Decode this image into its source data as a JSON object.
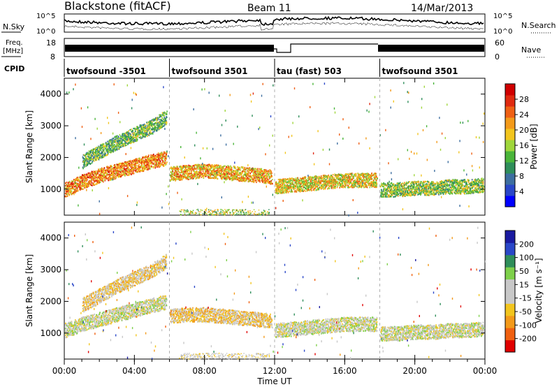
{
  "header": {
    "station": "Blackstone (fitACF)",
    "beam": "Beam 11",
    "date": "14/Mar/2013"
  },
  "noise_panel": {
    "left_label": "N.Sky",
    "right_label": "N.Search",
    "left_ticks": [
      "10^5",
      "10^0"
    ],
    "right_ticks": [
      "10^5",
      "10^0"
    ]
  },
  "freq_panel": {
    "left_label_top": "Freq.",
    "left_label_bottom": "[MHz]",
    "right_label": "Nave",
    "left_ticks": [
      "18",
      "8"
    ],
    "right_ticks": [
      "60",
      "0"
    ]
  },
  "cpid_panel": {
    "label": "CPID",
    "segments": [
      {
        "name": "twofsound -3501",
        "start_h": 0,
        "end_h": 6
      },
      {
        "name": "twofsound 3501",
        "start_h": 6,
        "end_h": 12
      },
      {
        "name": "tau (fast) 503",
        "start_h": 12,
        "end_h": 18
      },
      {
        "name": "twofsound 3501",
        "start_h": 18,
        "end_h": 24
      }
    ]
  },
  "time_axis": {
    "label": "Time UT",
    "ticks": [
      "00:00",
      "04:00",
      "08:00",
      "12:00",
      "16:00",
      "20:00",
      "00:00"
    ],
    "range_h": [
      0,
      24
    ]
  },
  "power_panel": {
    "ylabel": "Slant Range [km]",
    "yticks": [
      "4000",
      "3000",
      "2000",
      "1000"
    ],
    "colorbar_label": "Power [dB]",
    "colorbar_ticks": [
      "28",
      "24",
      "20",
      "16",
      "12",
      "8",
      "4"
    ]
  },
  "velocity_panel": {
    "ylabel": "Slant Range [km]",
    "yticks": [
      "4000",
      "3000",
      "2000",
      "1000"
    ],
    "colorbar_label": "Velocity [m s⁻¹]",
    "colorbar_ticks": [
      "200",
      "100",
      "50",
      "15",
      "-15",
      "-50",
      "-100",
      "-200"
    ]
  },
  "colors": {
    "power_scale": [
      "#0000ff",
      "#2a47c8",
      "#3d6ea0",
      "#2f8e5a",
      "#4ab53a",
      "#9fd63b",
      "#f2c51e",
      "#f39a1a",
      "#ef6014",
      "#e02a10",
      "#d00000"
    ],
    "velocity_scale": [
      "#e00000",
      "#f06010",
      "#f39a1a",
      "#f2c51e",
      "#c8c8c8",
      "#c8c8c8",
      "#7ed04a",
      "#2f8e5a",
      "#2a47c8",
      "#1a1aa0"
    ]
  },
  "chart_data": [
    {
      "type": "heatmap",
      "title": "Power",
      "xlabel": "Time UT",
      "ylabel": "Slant Range [km]",
      "xlim_h": [
        0,
        24
      ],
      "ylim_km": [
        180,
        4500
      ],
      "zlim_db": [
        0,
        30
      ],
      "legend": "Power [dB]",
      "scatter_bands": [
        {
          "t": [
            0,
            1,
            2,
            3,
            4,
            5,
            5.8
          ],
          "range_km": [
            1000,
            1250,
            1450,
            1600,
            1750,
            1900,
            2000
          ],
          "power_db": 22
        },
        {
          "t": [
            1,
            2,
            3,
            4,
            5,
            5.8
          ],
          "range_km": [
            1900,
            2200,
            2500,
            2750,
            3000,
            3300
          ],
          "power_db": 12
        },
        {
          "t": [
            6,
            7,
            8,
            9,
            10,
            11,
            11.8
          ],
          "range_km": [
            1500,
            1550,
            1600,
            1550,
            1500,
            1450,
            1400
          ],
          "power_db": 20
        },
        {
          "t": [
            12,
            13,
            14,
            15,
            16,
            17,
            17.8
          ],
          "range_km": [
            1100,
            1150,
            1200,
            1250,
            1300,
            1300,
            1300
          ],
          "power_db": 18
        },
        {
          "t": [
            18,
            19,
            20,
            21,
            22,
            23,
            23.9
          ],
          "range_km": [
            1000,
            1000,
            1050,
            1050,
            1100,
            1100,
            1150
          ],
          "power_db": 14
        }
      ]
    },
    {
      "type": "heatmap",
      "title": "Velocity",
      "xlabel": "Time UT",
      "ylabel": "Slant Range [km]",
      "xlim_h": [
        0,
        24
      ],
      "ylim_km": [
        180,
        4500
      ],
      "zlim_ms": [
        -200,
        200
      ],
      "legend": "Velocity [m s⁻¹]",
      "scatter_bands": [
        {
          "t": [
            0,
            1,
            2,
            3,
            4,
            5,
            5.8
          ],
          "range_km": [
            1100,
            1300,
            1450,
            1600,
            1750,
            1900,
            2000
          ],
          "velocity_ms": 0
        },
        {
          "t": [
            1,
            2,
            3,
            4,
            5,
            5.8
          ],
          "range_km": [
            1900,
            2200,
            2500,
            2750,
            3000,
            3300
          ],
          "velocity_ms": -40
        },
        {
          "t": [
            6,
            7,
            8,
            9,
            10,
            11,
            11.8
          ],
          "range_km": [
            1550,
            1600,
            1600,
            1550,
            1500,
            1450,
            1400
          ],
          "velocity_ms": -50
        },
        {
          "t": [
            12,
            13,
            14,
            15,
            16,
            17,
            17.8
          ],
          "range_km": [
            1100,
            1150,
            1200,
            1250,
            1300,
            1300,
            1300
          ],
          "velocity_ms": 0
        },
        {
          "t": [
            18,
            19,
            20,
            21,
            22,
            23,
            23.9
          ],
          "range_km": [
            1000,
            1000,
            1050,
            1050,
            1100,
            1100,
            1150
          ],
          "velocity_ms": 0
        }
      ]
    }
  ]
}
